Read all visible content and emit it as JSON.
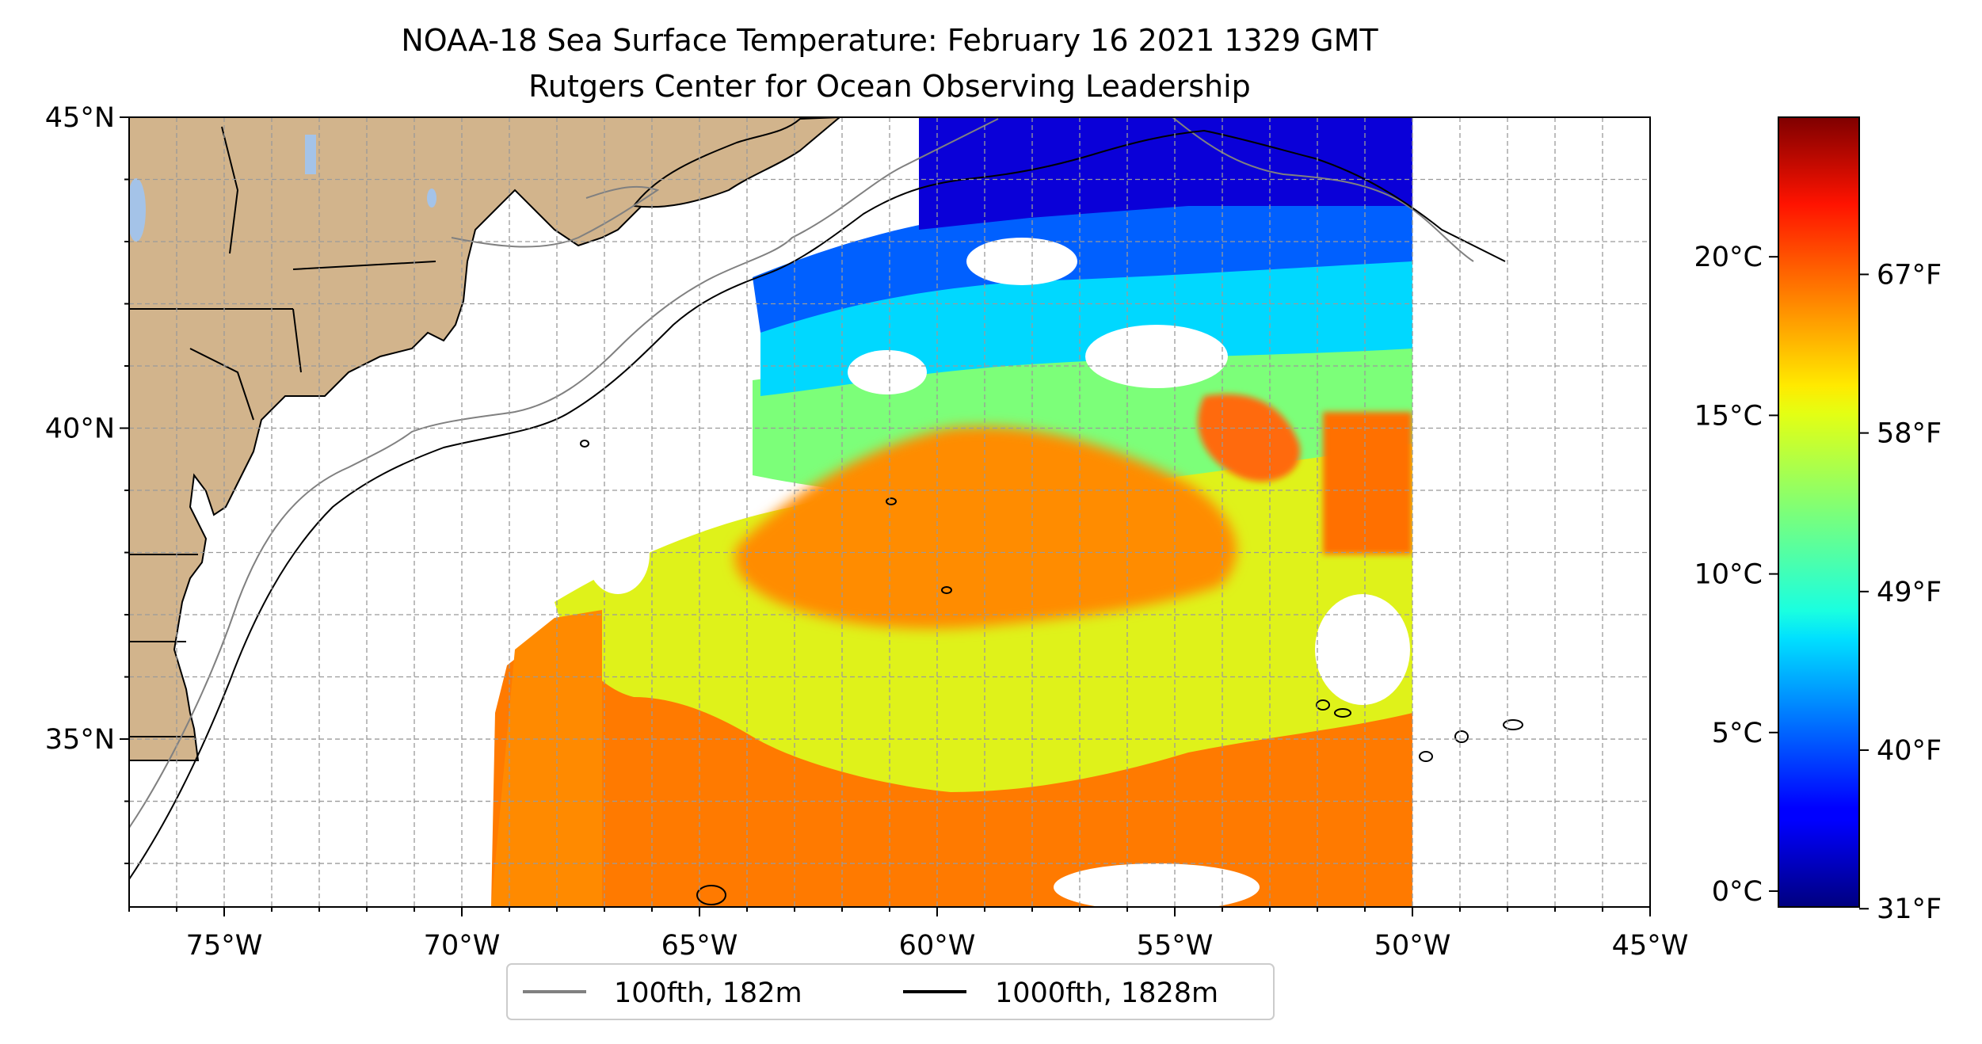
{
  "title": {
    "line1": "NOAA-18 Sea Surface Temperature: February 16 2021 1329 GMT",
    "line2": "Rutgers Center for Ocean Observing Leadership"
  },
  "map": {
    "lon_range": [
      -77,
      -45
    ],
    "lat_range": [
      32.3,
      45
    ],
    "lon_ticks": [
      {
        "lon": -75,
        "label": "75°W"
      },
      {
        "lon": -70,
        "label": "70°W"
      },
      {
        "lon": -65,
        "label": "65°W"
      },
      {
        "lon": -60,
        "label": "60°W"
      },
      {
        "lon": -55,
        "label": "55°W"
      },
      {
        "lon": -50,
        "label": "50°W"
      },
      {
        "lon": -45,
        "label": "45°W"
      }
    ],
    "lat_ticks": [
      {
        "lat": 45,
        "label": "45°N"
      },
      {
        "lat": 40,
        "label": "40°N"
      },
      {
        "lat": 35,
        "label": "35°N"
      }
    ],
    "grid": "dashed",
    "land_color": "#d2b48c",
    "lake_color": "#a4c3e8"
  },
  "legend": {
    "placement": "bottom-center",
    "items": [
      {
        "label": "100fth, 182m",
        "color": "#808080"
      },
      {
        "label": "1000fth, 1828m",
        "color": "#000000"
      }
    ]
  },
  "colorbar": {
    "colormap": "jet",
    "range_c": [
      -0.5,
      24.4
    ],
    "celsius_ticks": [
      {
        "value": 0,
        "label": "0°C"
      },
      {
        "value": 5,
        "label": "5°C"
      },
      {
        "value": 10,
        "label": "10°C"
      },
      {
        "value": 15,
        "label": "15°C"
      },
      {
        "value": 20,
        "label": "20°C"
      }
    ],
    "fahrenheit_ticks": [
      {
        "value": 31,
        "label": "31°F"
      },
      {
        "value": 40,
        "label": "40°F"
      },
      {
        "value": 49,
        "label": "49°F"
      },
      {
        "value": 58,
        "label": "58°F"
      },
      {
        "value": 67,
        "label": "67°F"
      }
    ]
  }
}
